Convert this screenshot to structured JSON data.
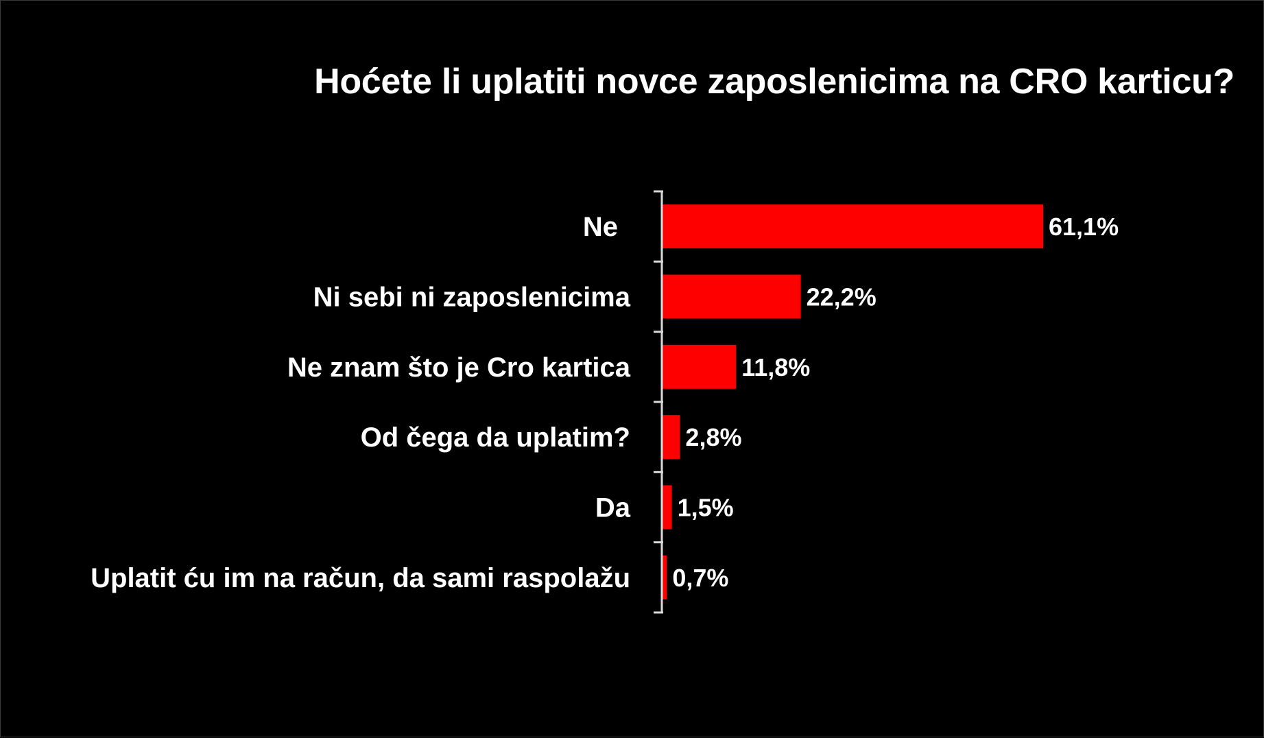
{
  "chart_data": {
    "type": "bar",
    "orientation": "horizontal",
    "title": "Hoćete li uplatiti novce zaposlenicima na CRO karticu?",
    "categories": [
      "Ne",
      "Ni sebi ni zaposlenicima",
      "Ne znam što je Cro kartica",
      "Od čega da uplatim?",
      "Da",
      "Uplatit ću im na račun, da sami raspolažu"
    ],
    "values": [
      61.1,
      22.2,
      11.8,
      2.8,
      1.5,
      0.7
    ],
    "value_labels": [
      "61,1%",
      "22,2%",
      "11,8%",
      "2,8%",
      "1,5%",
      "0,7%"
    ],
    "unit": "%",
    "xlim": [
      0,
      61.1
    ],
    "grid": false,
    "legend": "none",
    "colors": {
      "background": "#000000",
      "bar": "#ff0000",
      "text": "#ffffff",
      "axis": "#d9d9d9"
    }
  }
}
